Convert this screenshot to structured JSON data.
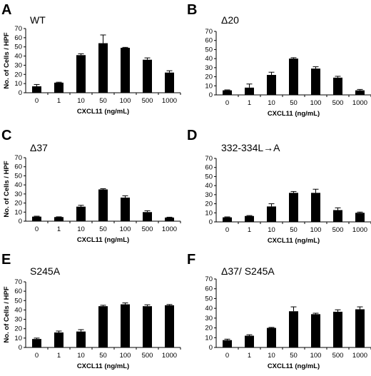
{
  "chart_data": [
    {
      "letter": "A",
      "title": "WT",
      "type": "bar",
      "categories": [
        "0",
        "1",
        "10",
        "50",
        "100",
        "500",
        "1000"
      ],
      "values": [
        7,
        11,
        41,
        54,
        49,
        36,
        22
      ],
      "errors": [
        2,
        0.5,
        1.5,
        9,
        0.5,
        2,
        2
      ],
      "xlabel": "CXCL11 (ng/mL)",
      "ylabel": "No. of Cells / HPF",
      "ylim": [
        0,
        70
      ],
      "yticks": [
        "0",
        "10",
        "20",
        "30",
        "40",
        "50",
        "60",
        "70"
      ]
    },
    {
      "letter": "B",
      "title": "Δ20",
      "type": "bar",
      "categories": [
        "0",
        "1",
        "10",
        "50",
        "100",
        "500",
        "1000"
      ],
      "values": [
        5,
        8,
        22,
        40,
        29,
        19,
        5
      ],
      "errors": [
        0.5,
        4,
        3,
        1,
        2,
        1.5,
        1
      ],
      "xlabel": "CXCL11 (ng/mL)",
      "ylabel": "",
      "ylim": [
        0,
        70
      ],
      "yticks": [
        "0",
        "10",
        "20",
        "30",
        "40",
        "50",
        "60",
        "70"
      ]
    },
    {
      "letter": "C",
      "title": "Δ37",
      "type": "bar",
      "categories": [
        "0",
        "1",
        "10",
        "50",
        "100",
        "500",
        "1000"
      ],
      "values": [
        5,
        4.5,
        16,
        35,
        26,
        10,
        4
      ],
      "errors": [
        0.5,
        0.3,
        1.5,
        0.8,
        2,
        1.5,
        0.4
      ],
      "xlabel": "CXCL11 (ng/mL)",
      "ylabel": "No. of Cells / HPF",
      "ylim": [
        0,
        70
      ],
      "yticks": [
        "0",
        "10",
        "20",
        "30",
        "40",
        "50",
        "60",
        "70"
      ]
    },
    {
      "letter": "D",
      "title": "332-334L→A",
      "type": "bar",
      "categories": [
        "0",
        "1",
        "10",
        "50",
        "100",
        "500",
        "1000"
      ],
      "values": [
        5,
        6.5,
        17,
        32,
        32,
        13,
        10
      ],
      "errors": [
        0.5,
        0.5,
        3,
        1.5,
        4,
        2.5,
        0.8
      ],
      "xlabel": "CXCL11 (ng/mL)",
      "ylabel": "",
      "ylim": [
        0,
        70
      ],
      "yticks": [
        "0",
        "10",
        "20",
        "30",
        "40",
        "50",
        "60",
        "70"
      ]
    },
    {
      "letter": "E",
      "title": "S245A",
      "type": "bar",
      "categories": [
        "0",
        "1",
        "10",
        "50",
        "100",
        "500",
        "1000"
      ],
      "values": [
        9,
        16,
        17,
        44,
        46,
        44,
        45
      ],
      "errors": [
        1,
        1.5,
        2,
        1,
        1.5,
        1.5,
        0.8
      ],
      "xlabel": "CXCL11 (ng/mL)",
      "ylabel": "No. of Cells / HPF",
      "ylim": [
        0,
        70
      ],
      "yticks": [
        "0",
        "10",
        "20",
        "30",
        "40",
        "50",
        "60",
        "70"
      ]
    },
    {
      "letter": "F",
      "title": "Δ37/ S245A",
      "type": "bar",
      "categories": [
        "0",
        "1",
        "10",
        "50",
        "100",
        "500",
        "1000"
      ],
      "values": [
        7.5,
        12,
        20,
        37,
        34,
        36.5,
        39
      ],
      "errors": [
        1,
        1,
        0.5,
        4.5,
        1,
        2,
        2.5
      ],
      "xlabel": "CXCL11 (ng/mL)",
      "ylabel": "",
      "ylim": [
        0,
        70
      ],
      "yticks": [
        "0",
        "10",
        "20",
        "30",
        "40",
        "50",
        "60",
        "70"
      ]
    }
  ],
  "colors": {
    "bar": "#000000",
    "axis": "#000000",
    "background": "#ffffff"
  }
}
